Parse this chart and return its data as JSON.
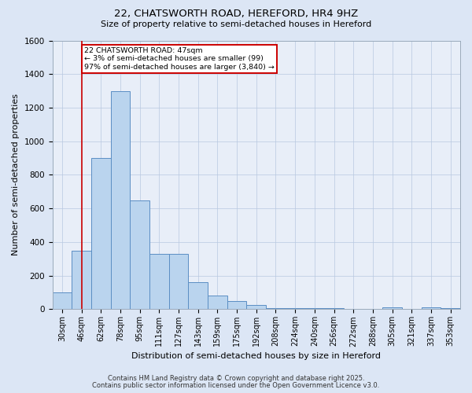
{
  "title_line1": "22, CHATSWORTH ROAD, HEREFORD, HR4 9HZ",
  "title_line2": "Size of property relative to semi-detached houses in Hereford",
  "xlabel": "Distribution of semi-detached houses by size in Hereford",
  "ylabel": "Number of semi-detached properties",
  "categories": [
    "30sqm",
    "46sqm",
    "62sqm",
    "78sqm",
    "95sqm",
    "111sqm",
    "127sqm",
    "143sqm",
    "159sqm",
    "175sqm",
    "192sqm",
    "208sqm",
    "224sqm",
    "240sqm",
    "256sqm",
    "272sqm",
    "288sqm",
    "305sqm",
    "321sqm",
    "337sqm",
    "353sqm"
  ],
  "values": [
    100,
    350,
    900,
    1300,
    650,
    330,
    330,
    160,
    80,
    50,
    25,
    5,
    5,
    5,
    5,
    0,
    0,
    10,
    0,
    10,
    5
  ],
  "bar_color": "#bad4ee",
  "bar_edge_color": "#5b8ec4",
  "vline_x": 1,
  "annotation_text_line1": "22 CHATSWORTH ROAD: 47sqm",
  "annotation_text_line2": "← 3% of semi-detached houses are smaller (99)",
  "annotation_text_line3": "97% of semi-detached houses are larger (3,840) →",
  "vline_color": "#cc0000",
  "annotation_box_edge_color": "#cc0000",
  "annotation_box_face_color": "#ffffff",
  "ylim": [
    0,
    1600
  ],
  "yticks": [
    0,
    200,
    400,
    600,
    800,
    1000,
    1200,
    1400,
    1600
  ],
  "footnote_line1": "Contains HM Land Registry data © Crown copyright and database right 2025.",
  "footnote_line2": "Contains public sector information licensed under the Open Government Licence v3.0.",
  "background_color": "#dce6f5",
  "plot_background_color": "#e8eef8",
  "grid_color": "#b8c8e0"
}
